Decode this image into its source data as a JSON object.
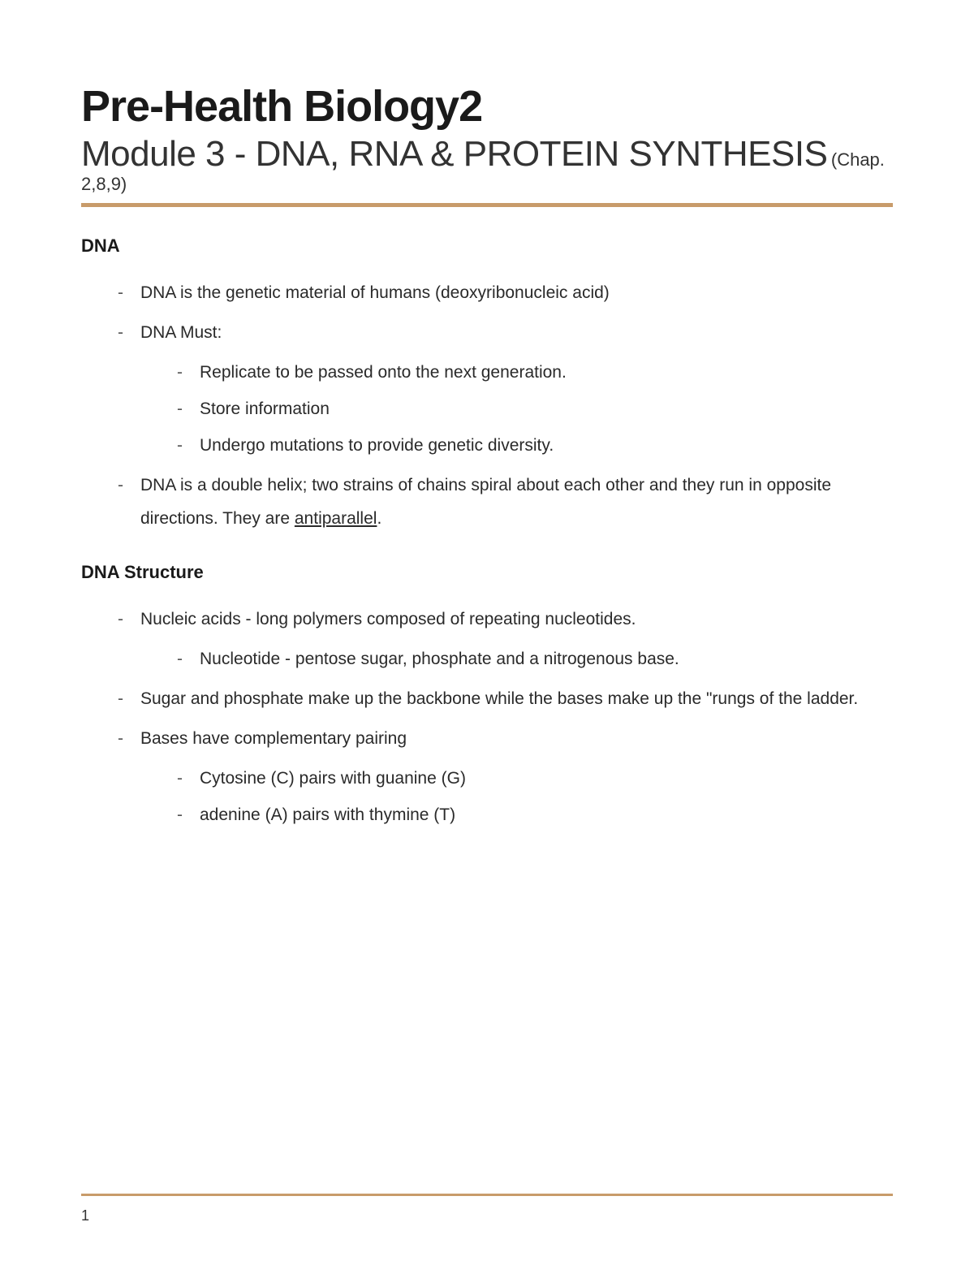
{
  "title": {
    "main": "Pre-Health Biology2",
    "sub": "Module 3 - DNA, RNA & PROTEIN SYNTHESIS",
    "chap": "(Chap. 2,8,9)"
  },
  "colors": {
    "divider": "#c89b6a",
    "background": "#ffffff",
    "text_primary": "#1a1a1a",
    "text_body": "#2a2a2a"
  },
  "sections": [
    {
      "heading": "DNA",
      "items": [
        {
          "text": "DNA is the genetic material of humans (deoxyribonucleic acid)"
        },
        {
          "text": "DNA Must:",
          "children": [
            "Replicate to be passed onto the next generation.",
            "Store information",
            "Undergo mutations to provide genetic diversity."
          ]
        },
        {
          "text_pre": "DNA is a double helix; two strains of chains spiral about each other and they run in opposite directions. They are ",
          "text_underlined": "antiparallel",
          "text_post": "."
        }
      ]
    },
    {
      "heading": "DNA Structure",
      "items": [
        {
          "text": "Nucleic acids - long polymers composed of repeating nucleotides.",
          "children": [
            "Nucleotide - pentose sugar, phosphate and a nitrogenous base."
          ]
        },
        {
          "text": "Sugar and phosphate make up the backbone while the bases make up the \"rungs of the ladder."
        },
        {
          "text": "Bases have complementary pairing",
          "children": [
            "Cytosine (C) pairs with guanine (G)",
            "adenine (A) pairs with thymine (T)"
          ]
        }
      ]
    }
  ],
  "page_number": "1"
}
